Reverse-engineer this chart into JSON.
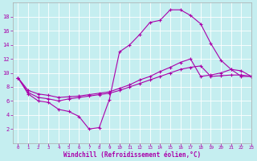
{
  "xlabel": "Windchill (Refroidissement éolien,°C)",
  "bg_color": "#c5eef0",
  "line_color": "#aa00aa",
  "grid_color": "#ffffff",
  "curve1_x": [
    0,
    1,
    2,
    3,
    4,
    5,
    6,
    7,
    8,
    9,
    10,
    11,
    12,
    13,
    14,
    15,
    16,
    17,
    18,
    19,
    20,
    21,
    22,
    23
  ],
  "curve1_y": [
    9.3,
    7.0,
    6.0,
    5.8,
    4.8,
    4.5,
    3.8,
    2.0,
    2.2,
    6.2,
    13.0,
    14.0,
    15.5,
    17.2,
    17.5,
    19.0,
    19.0,
    18.2,
    17.0,
    14.2,
    11.8,
    10.5,
    9.5,
    9.5
  ],
  "curve2_x": [
    0,
    1,
    2,
    3,
    4,
    5,
    6,
    7,
    8,
    9,
    10,
    11,
    12,
    13,
    14,
    15,
    16,
    17,
    18,
    19,
    20,
    21,
    22,
    23
  ],
  "curve2_y": [
    9.3,
    7.2,
    6.5,
    6.3,
    6.0,
    6.3,
    6.5,
    6.7,
    6.9,
    7.1,
    7.5,
    8.0,
    8.5,
    9.0,
    9.5,
    10.0,
    10.5,
    10.8,
    11.0,
    9.5,
    9.6,
    9.7,
    9.7,
    9.5
  ],
  "curve3_x": [
    0,
    1,
    2,
    3,
    4,
    5,
    6,
    7,
    8,
    9,
    10,
    11,
    12,
    13,
    14,
    15,
    16,
    17,
    18,
    19,
    20,
    21,
    22,
    23
  ],
  "curve3_y": [
    9.3,
    7.5,
    7.0,
    6.8,
    6.5,
    6.6,
    6.7,
    6.9,
    7.1,
    7.3,
    7.8,
    8.3,
    9.0,
    9.5,
    10.2,
    10.8,
    11.5,
    12.0,
    9.5,
    9.7,
    10.0,
    10.5,
    10.3,
    9.5
  ],
  "xlim": [
    -0.5,
    23
  ],
  "ylim": [
    0,
    20
  ],
  "xticks": [
    0,
    1,
    2,
    3,
    4,
    5,
    6,
    7,
    8,
    9,
    10,
    11,
    12,
    13,
    14,
    15,
    16,
    17,
    18,
    19,
    20,
    21,
    22,
    23
  ],
  "yticks": [
    2,
    4,
    6,
    8,
    10,
    12,
    14,
    16,
    18
  ]
}
